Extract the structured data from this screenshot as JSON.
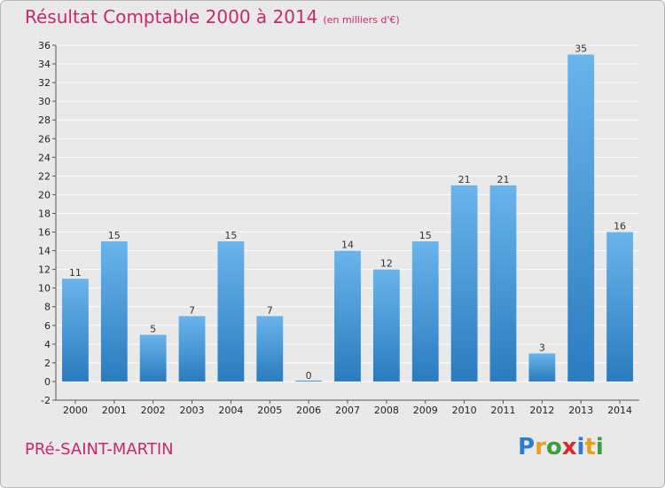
{
  "header": {
    "title": "Résultat Comptable 2000 à 2014",
    "subtitle": "(en milliers d'€)"
  },
  "footer": {
    "commune": "PRé-SAINT-MARTIN",
    "logo_text": "Proxiti",
    "logo_letters": [
      {
        "ch": "P",
        "color": "#2c7fd0"
      },
      {
        "ch": "r",
        "color": "#e8a020"
      },
      {
        "ch": "o",
        "color": "#3a9e3a"
      },
      {
        "ch": "x",
        "color": "#d42a2a"
      },
      {
        "ch": "i",
        "color": "#2c7fd0"
      },
      {
        "ch": "t",
        "color": "#e8a020"
      },
      {
        "ch": "i",
        "color": "#3a9e3a"
      }
    ]
  },
  "chart_data": {
    "type": "bar",
    "title": "Résultat Comptable 2000 à 2014",
    "subtitle": "(en milliers d'€)",
    "categories": [
      "2000",
      "2001",
      "2002",
      "2003",
      "2004",
      "2005",
      "2006",
      "2007",
      "2008",
      "2009",
      "2010",
      "2011",
      "2012",
      "2013",
      "2014"
    ],
    "values": [
      11,
      15,
      5,
      7,
      15,
      7,
      0,
      14,
      12,
      15,
      21,
      21,
      3,
      35,
      16
    ],
    "ylim": [
      -2,
      36
    ],
    "yticks": [
      -2,
      0,
      2,
      4,
      6,
      8,
      10,
      12,
      14,
      16,
      18,
      20,
      22,
      24,
      26,
      28,
      30,
      32,
      34,
      36
    ],
    "grid": true,
    "colors": {
      "bar_top": "#6ab4ec",
      "bar_bottom": "#2a7cbf",
      "grid": "#ffffff",
      "title": "#c8286f"
    }
  }
}
